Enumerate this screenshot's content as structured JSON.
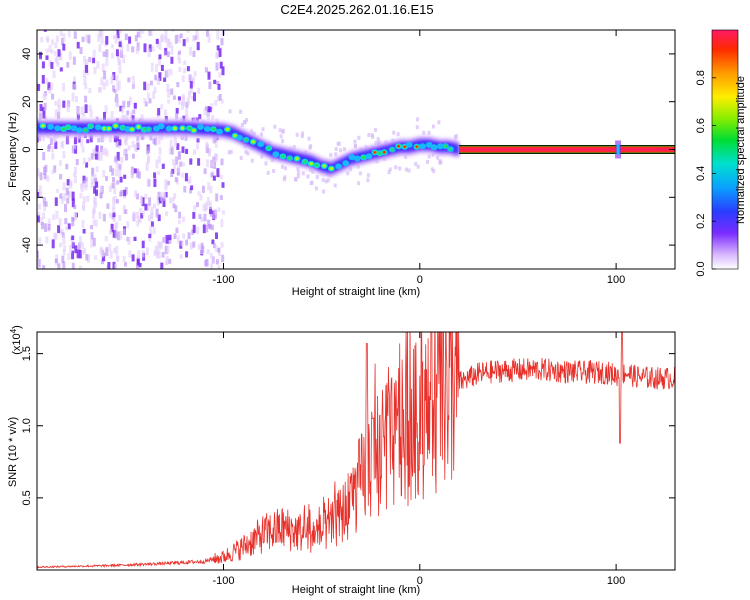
{
  "title": "C2E4.2025.262.01.16.E15",
  "chart_data": [
    {
      "type": "heatmap",
      "xlabel": "Height of straight line (km)",
      "ylabel": "Frequency (Hz)",
      "xlim": [
        -195,
        130
      ],
      "ylim": [
        -50,
        50
      ],
      "xticks": [
        -100,
        0,
        100
      ],
      "yticks": [
        -40,
        -20,
        0,
        20,
        40
      ],
      "colorbar": {
        "label": "Normalized spectral amplitude",
        "range": [
          0,
          1
        ],
        "ticks": [
          0.0,
          0.2,
          0.4,
          0.6,
          0.8
        ],
        "tick_labels": [
          "0.0",
          "0.2",
          "0.4",
          "0.6",
          "0.8"
        ]
      },
      "ridge": {
        "x": [
          -195,
          -180,
          -160,
          -140,
          -120,
          -100,
          -95,
          -90,
          -85,
          -80,
          -75,
          -70,
          -65,
          -60,
          -55,
          -50,
          -45,
          -40,
          -35,
          -30,
          -25,
          -20,
          -15,
          -10,
          -5,
          0,
          5,
          10,
          15,
          20
        ],
        "y": [
          9,
          9,
          9,
          9,
          9,
          8,
          7,
          5,
          3,
          1,
          -1,
          -2,
          -3,
          -4,
          -5,
          -7,
          -8,
          -6,
          -4,
          -3,
          -2,
          -1,
          0,
          1,
          1,
          2,
          2,
          1,
          1,
          0
        ]
      },
      "steady_line": {
        "x_from": 20,
        "x_to": 130,
        "y": 0,
        "spike_x": 101
      },
      "noise_region_xmax": -100
    },
    {
      "type": "line",
      "xlabel": "Height of straight line (km)",
      "ylabel": "SNR (10 * v/v)",
      "y_multiplier": "(x10",
      "y_multiplier_exp": "4",
      "y_multiplier_close": ")",
      "xlim": [
        -195,
        130
      ],
      "ylim": [
        0,
        16500
      ],
      "xticks": [
        -100,
        0,
        100
      ],
      "yticks": [
        5000,
        10000,
        15000
      ],
      "ytick_labels": [
        "0.5",
        "1.0",
        "1.5"
      ],
      "color": "#e8302a",
      "envelope": {
        "x": [
          -195,
          -160,
          -130,
          -110,
          -100,
          -90,
          -80,
          -70,
          -60,
          -50,
          -45,
          -40,
          -35,
          -30,
          -25,
          -20,
          -15,
          -10,
          -5,
          0,
          10,
          20,
          30,
          40,
          60,
          80,
          95,
          100,
          105,
          110,
          120,
          130
        ],
        "y": [
          200,
          300,
          450,
          600,
          900,
          1600,
          2500,
          2900,
          2600,
          2600,
          3000,
          3800,
          4800,
          6200,
          7300,
          8000,
          8600,
          9300,
          9900,
          10500,
          12000,
          13000,
          13600,
          13800,
          13900,
          13700,
          13700,
          13500,
          13700,
          13400,
          13300,
          13300
        ]
      },
      "spikes": [
        {
          "x": -27,
          "y": 15700
        },
        {
          "x": -24,
          "y": 10500
        },
        {
          "x": 102,
          "y": 8800
        },
        {
          "x": 103,
          "y": 16500
        }
      ]
    }
  ]
}
